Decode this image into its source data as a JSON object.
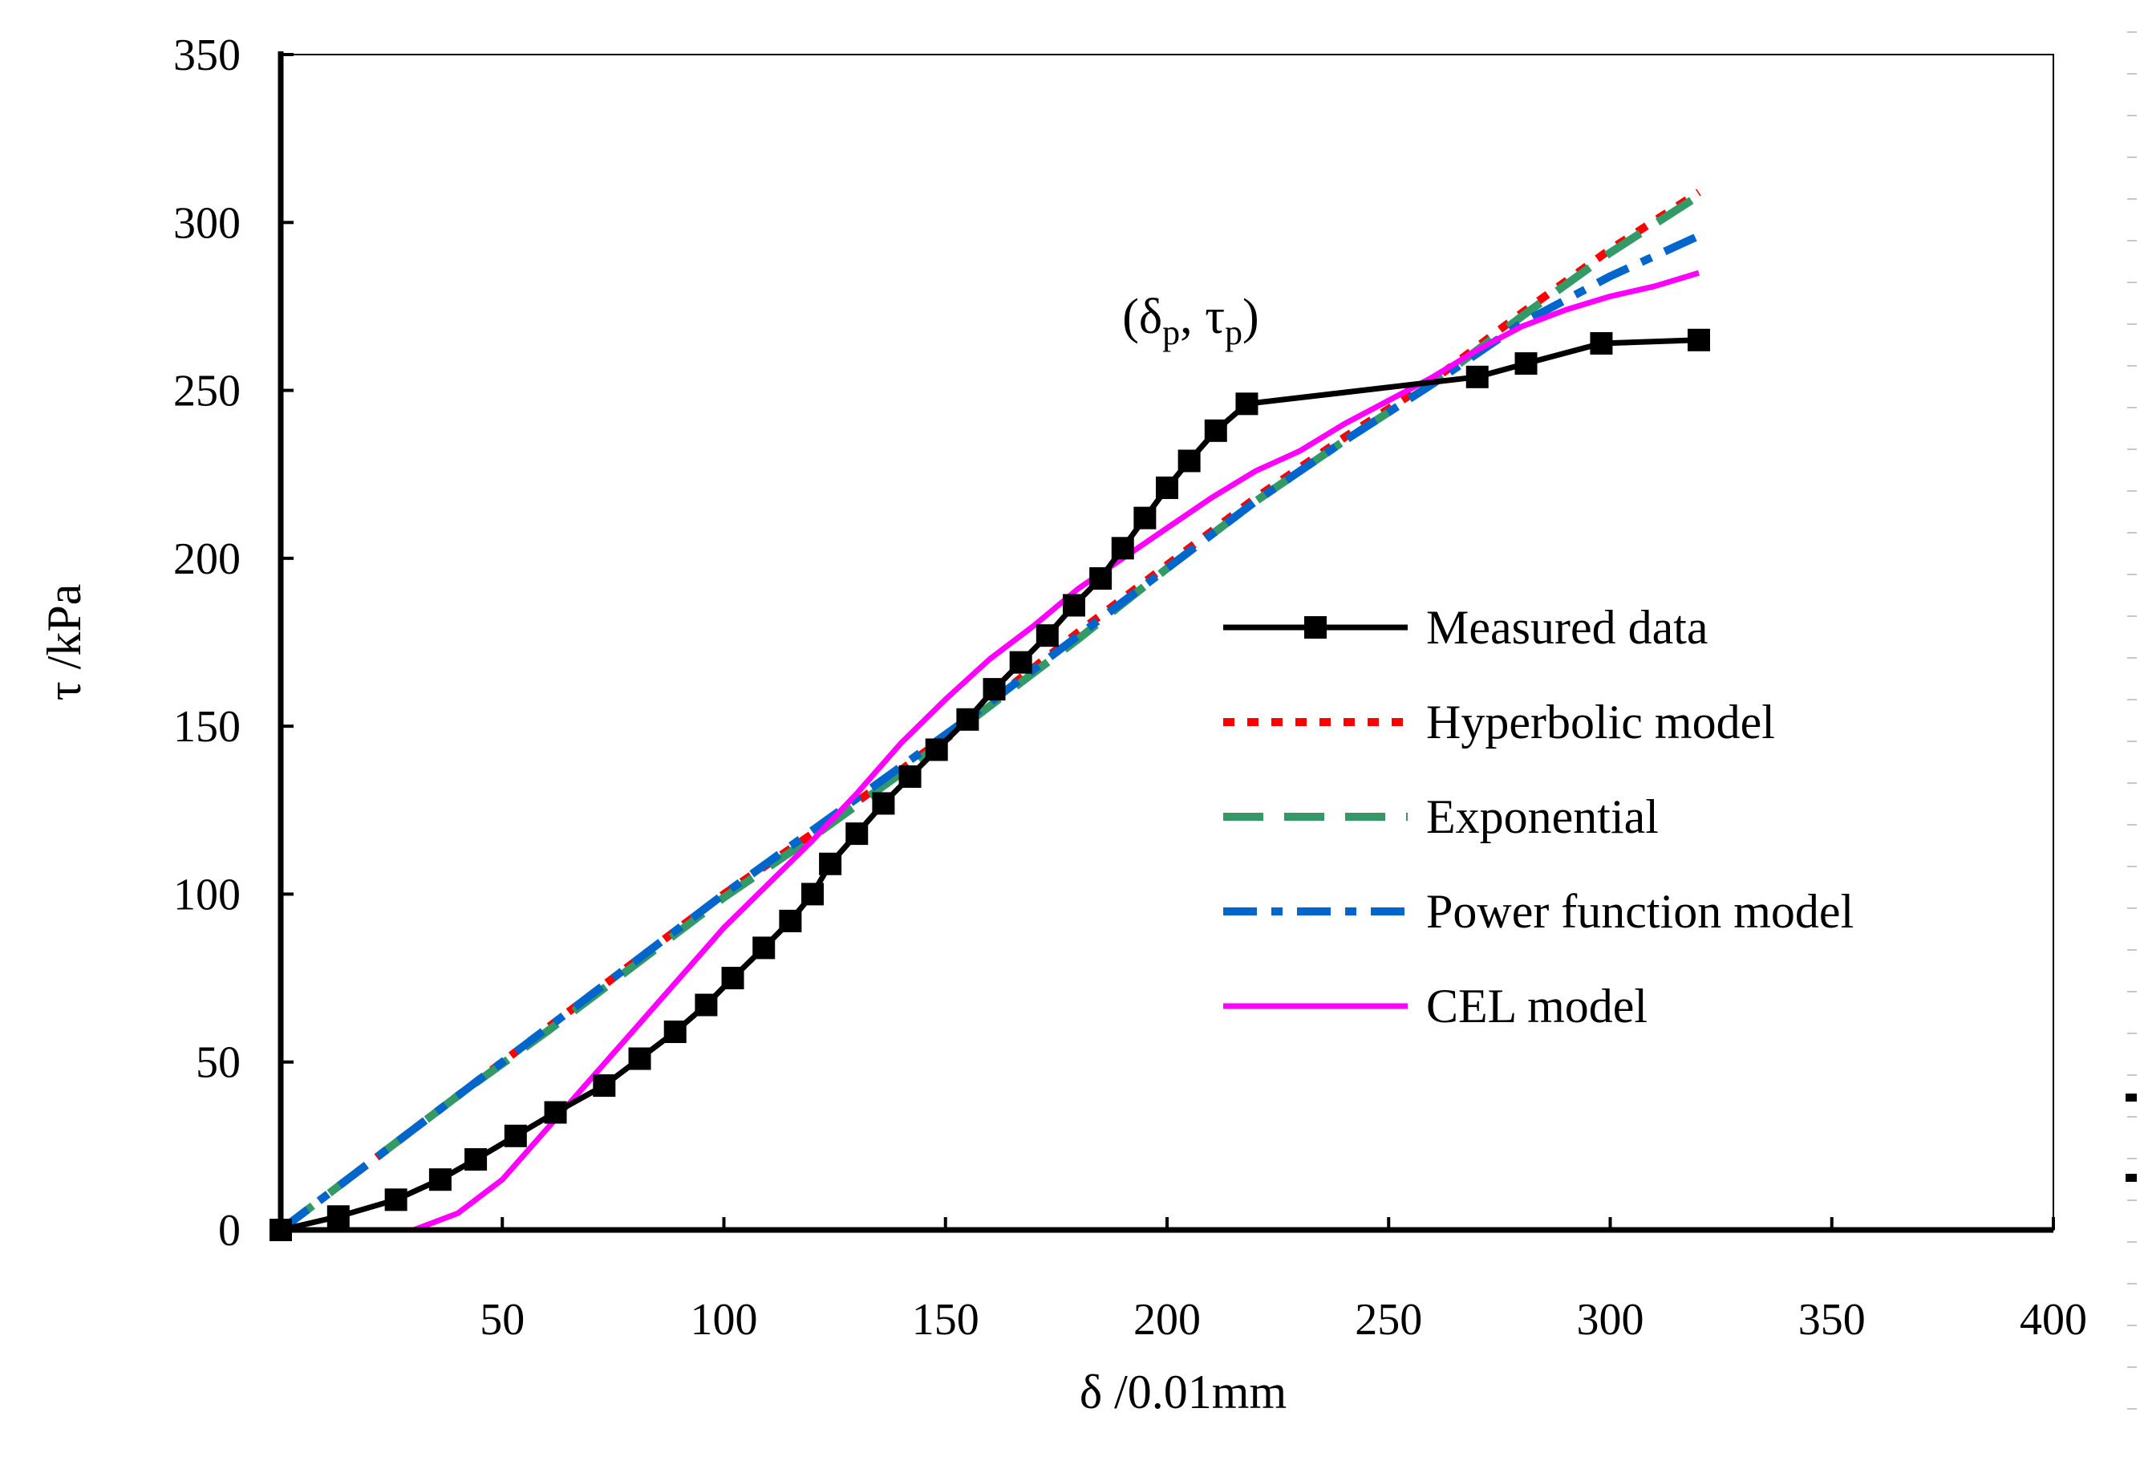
{
  "chart_data": {
    "type": "line",
    "title": "",
    "xlabel": "δ /0.01mm",
    "ylabel": "τ /kPa",
    "xlim": [
      0,
      400
    ],
    "ylim": [
      0,
      350
    ],
    "xticks": [
      50,
      100,
      150,
      200,
      250,
      300,
      350,
      400
    ],
    "yticks": [
      0,
      50,
      100,
      150,
      200,
      250,
      300,
      350
    ],
    "grid": false,
    "legend_position": "right",
    "annotation": {
      "text_open": "(δ",
      "sub1": "p",
      "text_mid": ",  τ",
      "sub2": "p",
      "text_close": ")",
      "at": [
        218,
        254
      ]
    },
    "series": [
      {
        "name": "Measured data",
        "style": "solid-square-markers",
        "color": "#000000",
        "x": [
          0,
          13,
          26,
          36,
          44,
          53,
          62,
          73,
          81,
          89,
          96,
          102,
          109,
          115,
          120,
          124,
          130,
          136,
          142,
          148,
          155,
          161,
          167,
          173,
          179,
          185,
          190,
          195,
          200,
          205,
          211,
          218,
          270,
          281,
          298,
          320
        ],
        "y": [
          0,
          4,
          9,
          15,
          21,
          28,
          35,
          43,
          51,
          59,
          67,
          75,
          84,
          92,
          100,
          109,
          118,
          127,
          135,
          143,
          152,
          161,
          169,
          177,
          186,
          194,
          203,
          212,
          221,
          229,
          238,
          246,
          254,
          258,
          264,
          265
        ]
      },
      {
        "name": "Hyperbolic model",
        "style": "dotted",
        "color": "#ff0000",
        "x": [
          0,
          20,
          40,
          60,
          80,
          100,
          120,
          140,
          160,
          180,
          200,
          220,
          240,
          260,
          280,
          300,
          320
        ],
        "y": [
          0,
          20,
          40,
          60,
          80,
          100,
          118,
          137,
          157,
          178,
          198,
          218,
          236,
          253,
          273,
          292,
          309
        ]
      },
      {
        "name": "Exponential",
        "style": "long-dash",
        "color": "#339966",
        "x": [
          0,
          20,
          40,
          60,
          80,
          100,
          120,
          140,
          160,
          180,
          200,
          220,
          240,
          260,
          280,
          300,
          320
        ],
        "y": [
          0,
          20,
          40,
          59,
          79,
          99,
          117,
          136,
          156,
          176,
          197,
          217,
          235,
          252,
          272,
          291,
          308
        ]
      },
      {
        "name": "Power function model",
        "style": "dash-dot",
        "color": "#0066cc",
        "x": [
          0,
          20,
          40,
          60,
          80,
          100,
          120,
          140,
          160,
          180,
          200,
          220,
          240,
          260,
          280,
          300,
          320
        ],
        "y": [
          0,
          20,
          40,
          60,
          80,
          100,
          119,
          138,
          157,
          177,
          197,
          217,
          235,
          252,
          270,
          284,
          296
        ]
      },
      {
        "name": "CEL model",
        "style": "solid",
        "color": "#ff00ff",
        "x": [
          0,
          10,
          20,
          30,
          40,
          50,
          60,
          70,
          80,
          90,
          100,
          110,
          120,
          130,
          140,
          150,
          160,
          170,
          180,
          190,
          200,
          210,
          220,
          230,
          240,
          250,
          260,
          270,
          280,
          290,
          300,
          310,
          320
        ],
        "y": [
          0,
          0,
          0,
          0,
          5,
          15,
          30,
          45,
          60,
          75,
          90,
          103,
          116,
          130,
          145,
          158,
          170,
          180,
          191,
          200,
          209,
          218,
          226,
          232,
          240,
          247,
          254,
          262,
          269,
          274,
          278,
          281,
          285
        ]
      }
    ]
  }
}
